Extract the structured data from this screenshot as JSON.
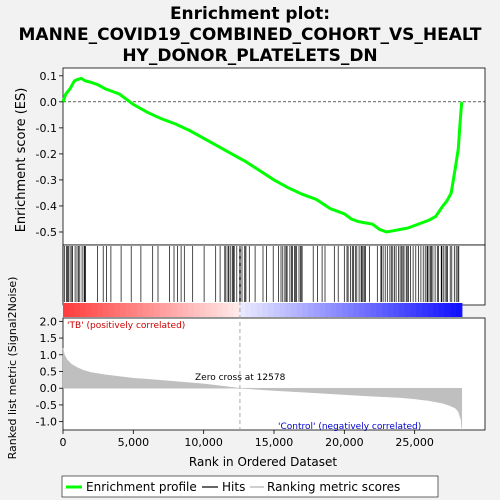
{
  "title_line1": "Enrichment plot:",
  "title_line2": "MANNE_COVID19_COMBINED_COHORT_VS_HEALT",
  "title_line3": "HY_DONOR_PLATELETS_DN",
  "colors": {
    "es_line": "#00ff00",
    "hits": "#000000",
    "metric_fill": "#bfbfbf",
    "positive": "#ff0000",
    "negative": "#0000ff",
    "background": "#f2f2f2"
  },
  "chart_data": [
    {
      "type": "line",
      "ylabel": "Enrichment score (ES)",
      "xlim": [
        0,
        30000
      ],
      "ylim": [
        -0.55,
        0.13
      ],
      "yticks": [
        0.1,
        0.0,
        -0.1,
        -0.2,
        -0.3,
        -0.4,
        -0.5
      ],
      "ytick_labels": [
        "0.1",
        "0.0",
        "-0.1",
        "-0.2",
        "-0.3",
        "-0.4",
        "-0.5"
      ],
      "series": [
        {
          "name": "Enrichment profile",
          "x": [
            0,
            200,
            500,
            800,
            1000,
            1300,
            1600,
            2000,
            2500,
            3000,
            3500,
            4000,
            4500,
            5000,
            6000,
            7000,
            8000,
            9000,
            10000,
            11000,
            12000,
            13000,
            14000,
            15000,
            16000,
            17000,
            18000,
            19000,
            20000,
            20500,
            21000,
            21500,
            22000,
            22500,
            23000,
            23500,
            24000,
            24500,
            25000,
            25500,
            26000,
            26500,
            27000,
            27300,
            27600,
            27900,
            28100,
            28200,
            28300,
            28350
          ],
          "values": [
            0.0,
            0.03,
            0.05,
            0.08,
            0.085,
            0.09,
            0.08,
            0.075,
            0.065,
            0.05,
            0.04,
            0.03,
            0.01,
            -0.01,
            -0.04,
            -0.065,
            -0.085,
            -0.11,
            -0.14,
            -0.17,
            -0.2,
            -0.23,
            -0.265,
            -0.3,
            -0.33,
            -0.355,
            -0.375,
            -0.41,
            -0.43,
            -0.45,
            -0.46,
            -0.465,
            -0.47,
            -0.49,
            -0.5,
            -0.495,
            -0.49,
            -0.485,
            -0.475,
            -0.465,
            -0.455,
            -0.44,
            -0.4,
            -0.38,
            -0.35,
            -0.25,
            -0.18,
            -0.1,
            -0.03,
            0.0
          ]
        }
      ]
    },
    {
      "type": "scatter",
      "name": "Hits",
      "xlim": [
        0,
        30000
      ],
      "hits_dense_ranges": [
        [
          0,
          1600
        ],
        [
          11500,
          13000
        ],
        [
          15500,
          17000
        ],
        [
          20000,
          21500
        ],
        [
          22600,
          28300
        ]
      ],
      "hits_sparse_ranges": [
        [
          1600,
          11500
        ],
        [
          13000,
          15500
        ],
        [
          17000,
          20000
        ],
        [
          21500,
          22600
        ]
      ],
      "color_bar": {
        "positive_label": "'TB' (positively correlated)",
        "negative_label": "'Control' (negatively correlated)",
        "zero_cross": 12578
      }
    },
    {
      "type": "area",
      "name": "Ranking metric scores",
      "xlabel": "Rank in Ordered Dataset",
      "ylabel": "Ranked list metric (Signal2Noise)",
      "xlim": [
        0,
        30000
      ],
      "ylim": [
        -1.25,
        2.1
      ],
      "yticks": [
        2.0,
        1.5,
        1.0,
        0.5,
        0.0,
        -0.5,
        -1.0
      ],
      "ytick_labels": [
        "2.0",
        "1.5",
        "1.0",
        "0.5",
        "0.0",
        "-0.5",
        "-1.0"
      ],
      "xticks": [
        0,
        5000,
        10000,
        15000,
        20000,
        25000
      ],
      "xtick_labels": [
        "0",
        "5,000",
        "10,000",
        "15,000",
        "20,000",
        "25,000"
      ],
      "x": [
        0,
        100,
        300,
        600,
        1000,
        1500,
        2000,
        3000,
        4000,
        5000,
        6000,
        8000,
        10000,
        12578,
        15000,
        18000,
        20000,
        22000,
        24000,
        25000,
        26000,
        27000,
        27500,
        27900,
        28100,
        28300,
        28350
      ],
      "values": [
        1.2,
        1.0,
        0.85,
        0.72,
        0.62,
        0.53,
        0.47,
        0.4,
        0.35,
        0.3,
        0.27,
        0.2,
        0.13,
        0.0,
        -0.07,
        -0.14,
        -0.19,
        -0.24,
        -0.28,
        -0.32,
        -0.37,
        -0.45,
        -0.52,
        -0.6,
        -0.7,
        -0.95,
        -1.25
      ],
      "annotation": "Zero cross at 12578"
    }
  ],
  "legend": {
    "items": [
      {
        "label": "Enrichment profile"
      },
      {
        "label": "Hits"
      },
      {
        "label": "Ranking metric scores"
      }
    ]
  }
}
